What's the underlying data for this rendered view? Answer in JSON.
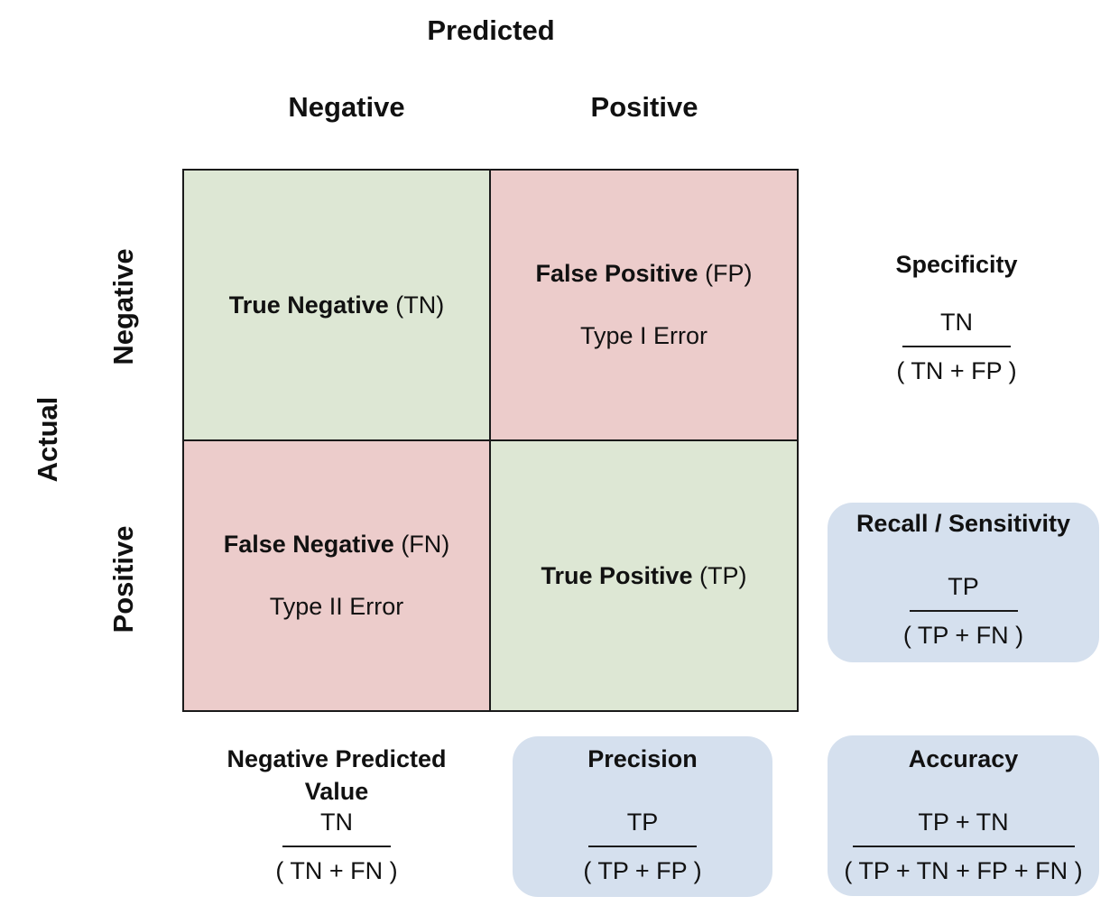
{
  "headers": {
    "predicted": "Predicted",
    "actual": "Actual",
    "pred_negative": "Negative",
    "pred_positive": "Positive",
    "act_negative": "Negative",
    "act_positive": "Positive"
  },
  "cells": {
    "tn": {
      "main": "True Negative",
      "abbr": "(TN)",
      "sub": ""
    },
    "fp": {
      "main": "False Positive",
      "abbr": "(FP)",
      "sub": "Type I Error"
    },
    "fn": {
      "main": "False Negative",
      "abbr": "(FN)",
      "sub": "Type II Error"
    },
    "tp": {
      "main": "True Positive",
      "abbr": "(TP)",
      "sub": ""
    }
  },
  "metrics": {
    "specificity": {
      "title": "Specificity",
      "numerator": "TN",
      "denominator": "( TN + FP )"
    },
    "recall": {
      "title": "Recall / Sensitivity",
      "numerator": "TP",
      "denominator": "( TP + FN )"
    },
    "npv": {
      "title_line1": "Negative Predicted",
      "title_line2": "Value",
      "numerator": "TN",
      "denominator": "( TN + FN )"
    },
    "precision": {
      "title": "Precision",
      "numerator": "TP",
      "denominator": "( TP + FP )"
    },
    "accuracy": {
      "title": "Accuracy",
      "numerator": "TP + TN",
      "denominator": "( TP + TN + FP + FN )"
    }
  },
  "colors": {
    "correct_cell": "#dde7d4",
    "error_cell": "#eccccb",
    "highlight_box": "#d5e0ee",
    "line": "#1a1a1a"
  }
}
